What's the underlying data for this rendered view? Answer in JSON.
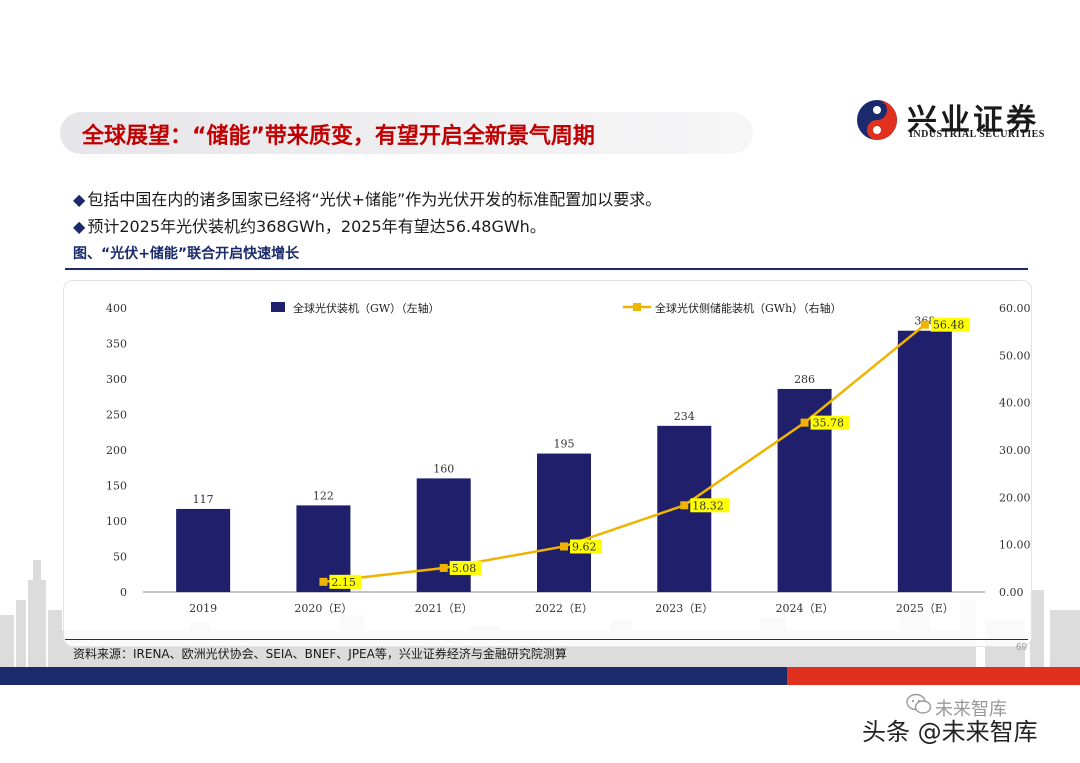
{
  "header": {
    "title": "全球展望：“储能”带来质变，有望开启全新景气周期",
    "logo_cn": "兴业证券",
    "logo_en": "INDUSTRIAL SECURITIES",
    "logo_colors": {
      "red": "#e0301e",
      "blue": "#1a2a6c"
    }
  },
  "bullets": [
    {
      "marker": "◆",
      "text": "包括中国在内的诸多国家已经将“光伏+储能”作为光伏开发的标准配置加以要求。"
    },
    {
      "marker": "◆",
      "text": "预计2025年光伏装机约368GWh，2025年有望达56.48GWh。"
    }
  ],
  "figure_title": "图、“光伏+储能”联合开启快速增长",
  "chart_data": {
    "type": "bar",
    "categories": [
      "2019",
      "2020（E）",
      "2021（E）",
      "2022（E）",
      "2023（E）",
      "2024（E）",
      "2025（E）"
    ],
    "series": [
      {
        "name": "全球光伏装机（GW）（左轴）",
        "type": "bar",
        "axis": "left",
        "values": [
          117,
          122,
          160,
          195,
          234,
          286,
          368
        ],
        "labels": [
          "117",
          "122",
          "160",
          "195",
          "234",
          "286",
          "368"
        ],
        "color": "#1f1f6b"
      },
      {
        "name": "全球光伏侧储能装机（GWh）（右轴）",
        "type": "line",
        "axis": "right",
        "values": [
          null,
          2.15,
          5.08,
          9.62,
          18.32,
          35.78,
          56.48
        ],
        "labels": [
          "",
          "2.15",
          "5.08",
          "9.62",
          "18.32",
          "35.78",
          "56.48"
        ],
        "color": "#f0b400",
        "label_bg": "#ffff00"
      }
    ],
    "y_left": {
      "ylim": [
        0,
        400
      ],
      "ticks": [
        "0",
        "50",
        "100",
        "150",
        "200",
        "250",
        "300",
        "350",
        "400"
      ]
    },
    "y_right": {
      "ylim": [
        0,
        60
      ],
      "ticks": [
        "0.00",
        "10.00",
        "20.00",
        "30.00",
        "40.00",
        "50.00",
        "60.00"
      ]
    },
    "legend": "top",
    "grid": false
  },
  "source": "资料来源：IRENA、欧洲光伏协会、SEIA、BNEF、JPEA等，兴业证券经济与金融研究院测算",
  "page_number": "69",
  "watermark": {
    "text": "头条 @未来智库",
    "faint_text": "未来智库",
    "icon": "wechat-icon"
  }
}
